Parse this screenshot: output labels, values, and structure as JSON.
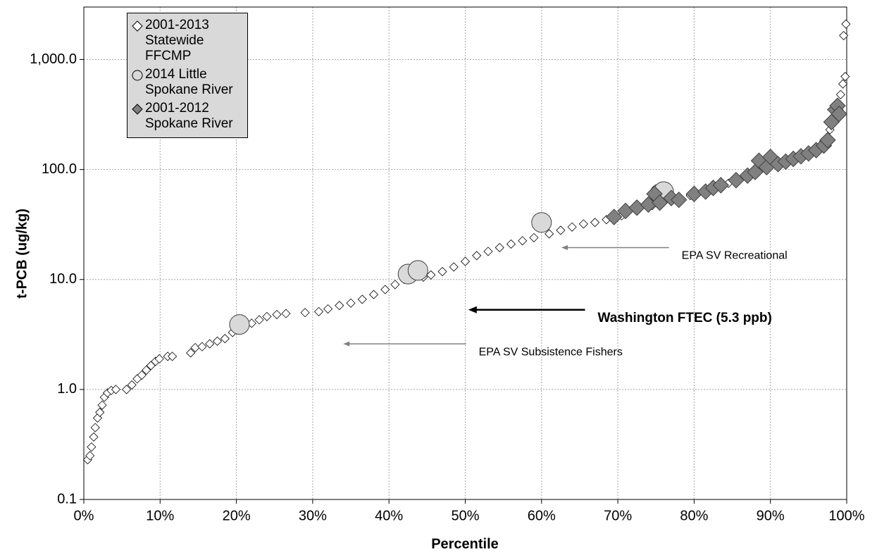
{
  "chart_data": {
    "type": "scatter",
    "xlabel": "Percentile",
    "ylabel": "t-PCB (ug/kg)",
    "xlim": [
      0,
      100
    ],
    "ylim": [
      0.1,
      3000
    ],
    "log_y": true,
    "grid": true,
    "legend": "upper left",
    "xticks": [
      {
        "value": 0,
        "label": "0%"
      },
      {
        "value": 10,
        "label": "10%"
      },
      {
        "value": 20,
        "label": "20%"
      },
      {
        "value": 30,
        "label": "30%"
      },
      {
        "value": 40,
        "label": "40%"
      },
      {
        "value": 50,
        "label": "50%"
      },
      {
        "value": 60,
        "label": "60%"
      },
      {
        "value": 70,
        "label": "70%"
      },
      {
        "value": 80,
        "label": "80%"
      },
      {
        "value": 90,
        "label": "90%"
      },
      {
        "value": 100,
        "label": "100%"
      }
    ],
    "yticks": [
      0.1,
      {
        "value": 1,
        "label": "1.0"
      },
      {
        "value": 10,
        "label": "10.0"
      },
      {
        "value": 100,
        "label": "100.0"
      },
      {
        "value": 1000,
        "label": "1,000.0"
      }
    ],
    "series": [
      {
        "name": "2001-2013 Statewide FFCMP",
        "marker": "diamond",
        "color": "#ffffff",
        "x": [
          0.5,
          0.8,
          1.0,
          1.3,
          1.5,
          1.8,
          2.1,
          2.4,
          2.7,
          3.1,
          3.6,
          4.2,
          5.6,
          6.3,
          7.0,
          7.6,
          8.2,
          8.8,
          9.4,
          9.9,
          11.0,
          11.6,
          14.0,
          14.6,
          15.5,
          16.5,
          17.5,
          18.5,
          19.5,
          21.0,
          22.0,
          23.0,
          24.0,
          25.3,
          26.5,
          29.0,
          30.8,
          32.0,
          33.5,
          35.0,
          36.5,
          38.0,
          39.5,
          40.8,
          42.0,
          44.5,
          45.5,
          47.0,
          48.5,
          50.0,
          51.5,
          53.0,
          54.5,
          56.0,
          57.5,
          59.0,
          61.0,
          62.5,
          64.0,
          65.5,
          67.0,
          68.5,
          70.5,
          72.5,
          74.5,
          77.0,
          79.5,
          82.0,
          84.5,
          87.0,
          89.5,
          92.0,
          94.5,
          96.0,
          97.0,
          97.8,
          98.3,
          98.8,
          99.2,
          99.5,
          99.8,
          99.6,
          99.9
        ],
        "values": [
          0.23,
          0.25,
          0.3,
          0.37,
          0.45,
          0.55,
          0.62,
          0.72,
          0.85,
          0.93,
          0.98,
          1.0,
          1.0,
          1.1,
          1.25,
          1.35,
          1.5,
          1.65,
          1.8,
          1.9,
          2.0,
          2.0,
          2.15,
          2.4,
          2.45,
          2.6,
          2.75,
          2.9,
          3.3,
          3.7,
          4.0,
          4.3,
          4.6,
          4.8,
          4.9,
          5.0,
          5.1,
          5.4,
          5.8,
          6.1,
          6.6,
          7.3,
          8.1,
          9.0,
          10.0,
          10.5,
          11.0,
          11.8,
          13.0,
          14.6,
          16.5,
          18.0,
          19.5,
          21.0,
          22.5,
          24.0,
          26.0,
          28.0,
          30.0,
          32.0,
          33.0,
          35.0,
          38.0,
          42.0,
          47.0,
          52.0,
          58.0,
          66.0,
          75.0,
          85.0,
          100.0,
          118.0,
          135.0,
          155.0,
          180.0,
          230.0,
          290.0,
          380.0,
          480.0,
          600.0,
          700.0,
          1650.0,
          2100.0
        ]
      },
      {
        "name": "2014 Little Spokane River",
        "marker": "circle",
        "color": "#d9d9d9",
        "x": [
          20.4,
          42.5,
          43.8,
          60.0,
          75.5,
          76.0
        ],
        "values": [
          3.9,
          11.2,
          12.1,
          33.0,
          60.0,
          63.0
        ]
      },
      {
        "name": "2001-2012 Spokane River",
        "marker": "diamond-large",
        "color": "#808080",
        "x": [
          69.5,
          71,
          72.5,
          74,
          74.8,
          75.5,
          77,
          78,
          80,
          81.5,
          82.5,
          83.5,
          85.5,
          87,
          88,
          88.5,
          89.5,
          90,
          91,
          92,
          93,
          94,
          95,
          96,
          97,
          97.5,
          98,
          98.5,
          98.8,
          99
        ],
        "values": [
          37,
          42,
          45,
          48,
          60,
          50,
          55,
          53,
          60,
          63,
          68,
          72,
          80,
          88,
          95,
          120,
          105,
          130,
          112,
          118,
          125,
          132,
          140,
          150,
          165,
          185,
          270,
          350,
          380,
          320
        ]
      }
    ],
    "annotations": [
      {
        "text": "EPA SV Recreational",
        "y": 19.5,
        "x_start": 76.7,
        "x_end": 62.6,
        "color": "#808080",
        "bold": false
      },
      {
        "text": "Washington FTEC (5.3 ppb)",
        "y": 5.3,
        "x_start": 65.7,
        "x_end": 50.4,
        "color": "#000000",
        "bold": true
      },
      {
        "text": "EPA SV Subsistence Fishers",
        "y": 2.6,
        "x_start": 50.1,
        "x_end": 34.0,
        "color": "#808080",
        "bold": false
      }
    ]
  }
}
